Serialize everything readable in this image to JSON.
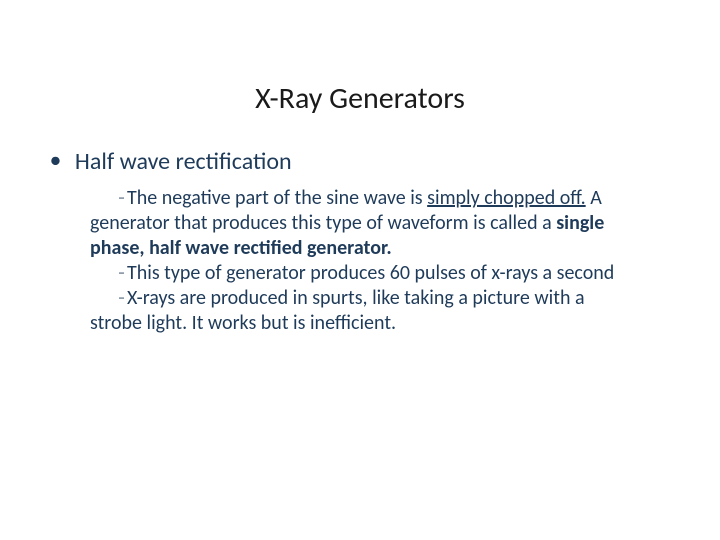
{
  "slide": {
    "title": "X-Ray Generators",
    "bullet_label": "Half wave rectification",
    "dash": "–",
    "p1a": "The negative part of the sine wave is ",
    "p1u": "simply chopped off.",
    "p1b": " A generator that produces this type of waveform is called a ",
    "p1bold": "single phase, half wave rectified generator.",
    "p2": "This type of generator produces 60 pulses of x-rays a second",
    "p3": "X-rays are produced in spurts, like taking a picture with a strobe light.  It works but is inefficient.",
    "colors": {
      "title": "#1a1a1a",
      "text": "#1f3b5a",
      "background": "#ffffff"
    },
    "fontsizes": {
      "title": 30,
      "bullet": 24,
      "body": 20
    }
  }
}
